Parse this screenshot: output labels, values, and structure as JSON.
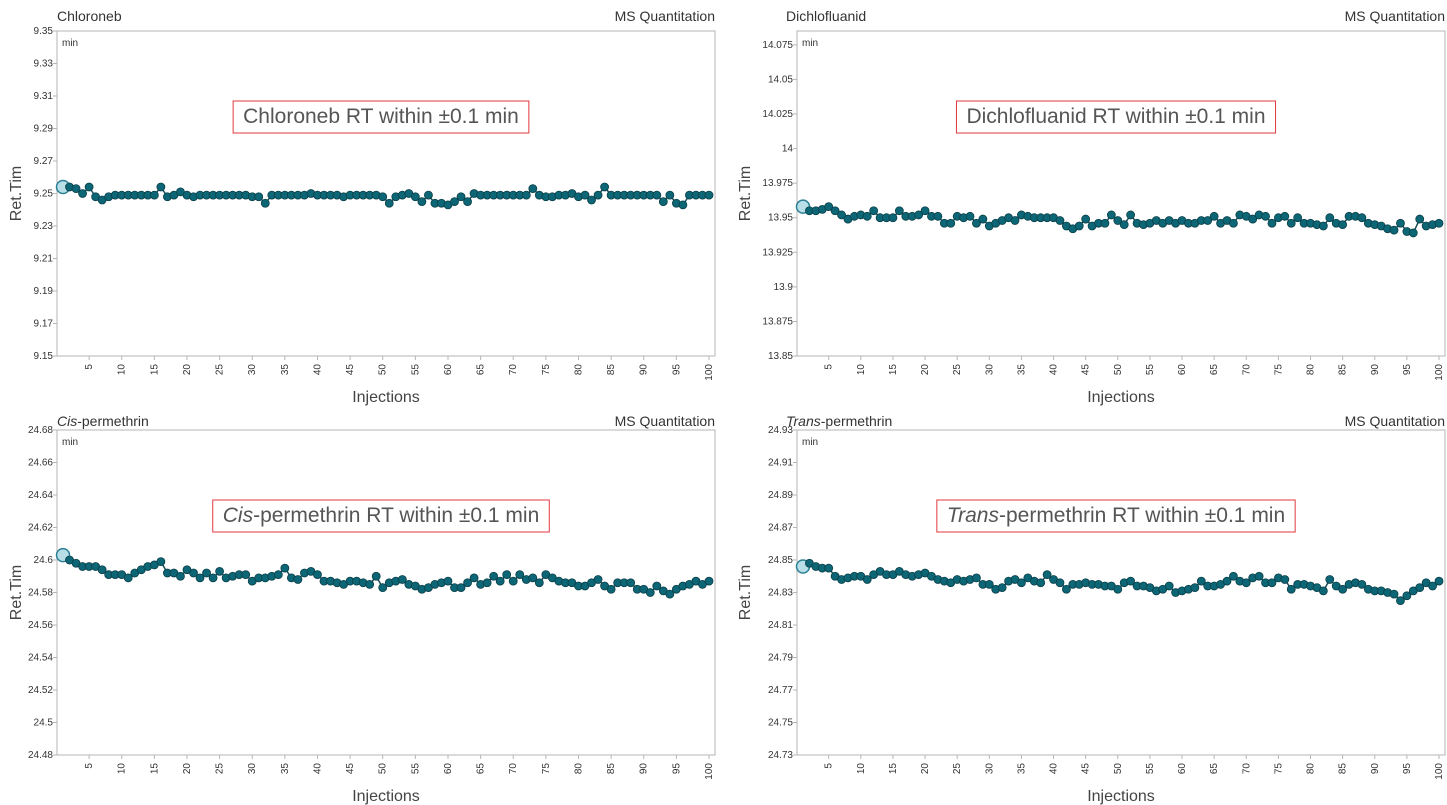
{
  "chart_data": [
    {
      "type": "scatter",
      "title": "Chloroneb",
      "title_italic_part": "",
      "title_rest": "Chloroneb",
      "subtitle": "MS Quantitation",
      "annotation_italic": "",
      "annotation_rest": "Chloroneb RT within ±0.1 min",
      "xlabel": "Injections",
      "ylabel": "Ret.Tim",
      "yunit": "min",
      "xlim": [
        0,
        100
      ],
      "ylim": [
        9.15,
        9.35
      ],
      "yticks": [
        "9.15",
        "9.17",
        "9.19",
        "9.21",
        "9.23",
        "9.25",
        "9.27",
        "9.29",
        "9.31",
        "9.33",
        "9.35"
      ],
      "xticks": [
        "5",
        "10",
        "15",
        "20",
        "25",
        "30",
        "35",
        "40",
        "45",
        "50",
        "55",
        "60",
        "65",
        "70",
        "75",
        "80",
        "85",
        "90",
        "95",
        "100"
      ],
      "highlight_x": 1,
      "base": 9.249,
      "y": [
        9.254,
        9.254,
        9.253,
        9.25,
        9.254,
        9.248,
        9.246,
        9.248,
        9.249,
        9.249,
        9.249,
        9.249,
        9.249,
        9.249,
        9.249,
        9.254,
        9.248,
        9.249,
        9.251,
        9.249,
        9.248,
        9.249,
        9.249,
        9.249,
        9.249,
        9.249,
        9.249,
        9.249,
        9.249,
        9.248,
        9.248,
        9.244,
        9.249,
        9.249,
        9.249,
        9.249,
        9.249,
        9.249,
        9.25,
        9.249,
        9.249,
        9.249,
        9.249,
        9.248,
        9.249,
        9.249,
        9.249,
        9.249,
        9.249,
        9.248,
        9.244,
        9.248,
        9.249,
        9.25,
        9.248,
        9.245,
        9.249,
        9.244,
        9.244,
        9.243,
        9.245,
        9.248,
        9.245,
        9.25,
        9.249,
        9.249,
        9.249,
        9.249,
        9.249,
        9.249,
        9.249,
        9.249,
        9.253,
        9.249,
        9.248,
        9.248,
        9.249,
        9.249,
        9.25,
        9.248,
        9.249,
        9.246,
        9.249,
        9.254,
        9.249,
        9.249,
        9.249,
        9.249,
        9.249,
        9.249,
        9.249,
        9.249,
        9.245,
        9.249,
        9.244,
        9.243,
        9.249,
        9.249,
        9.249,
        9.249
      ]
    },
    {
      "type": "scatter",
      "title": "Dichlofluanid",
      "title_italic_part": "",
      "title_rest": "Dichlofluanid",
      "subtitle": "MS Quantitation",
      "annotation_italic": "",
      "annotation_rest": "Dichlofluanid RT within ±0.1 min",
      "xlabel": "Injections",
      "ylabel": "Ret.Tim",
      "yunit": "min",
      "xlim": [
        0,
        100
      ],
      "ylim": [
        13.85,
        14.085
      ],
      "yticks": [
        "13.85",
        "13.875",
        "13.9",
        "13.925",
        "13.95",
        "13.975",
        "14",
        "14.025",
        "14.05",
        "14.075"
      ],
      "xticks": [
        "5",
        "10",
        "15",
        "20",
        "25",
        "30",
        "35",
        "40",
        "45",
        "50",
        "55",
        "60",
        "65",
        "70",
        "75",
        "80",
        "85",
        "90",
        "95",
        "100"
      ],
      "highlight_x": 1,
      "y": [
        13.958,
        13.955,
        13.955,
        13.956,
        13.958,
        13.955,
        13.952,
        13.949,
        13.951,
        13.952,
        13.951,
        13.955,
        13.95,
        13.95,
        13.95,
        13.955,
        13.951,
        13.951,
        13.952,
        13.955,
        13.951,
        13.951,
        13.946,
        13.946,
        13.951,
        13.95,
        13.951,
        13.946,
        13.949,
        13.944,
        13.946,
        13.948,
        13.95,
        13.948,
        13.952,
        13.951,
        13.95,
        13.95,
        13.95,
        13.95,
        13.948,
        13.944,
        13.942,
        13.944,
        13.949,
        13.944,
        13.946,
        13.946,
        13.952,
        13.948,
        13.945,
        13.952,
        13.946,
        13.945,
        13.946,
        13.948,
        13.946,
        13.948,
        13.946,
        13.948,
        13.946,
        13.946,
        13.948,
        13.948,
        13.951,
        13.946,
        13.948,
        13.946,
        13.952,
        13.951,
        13.949,
        13.952,
        13.951,
        13.946,
        13.95,
        13.951,
        13.946,
        13.95,
        13.946,
        13.946,
        13.945,
        13.944,
        13.95,
        13.946,
        13.945,
        13.951,
        13.951,
        13.95,
        13.946,
        13.945,
        13.944,
        13.942,
        13.941,
        13.946,
        13.94,
        13.939,
        13.949,
        13.944,
        13.945,
        13.946
      ]
    },
    {
      "type": "scatter",
      "title": "Cis-permethrin",
      "title_italic_part": "Cis",
      "title_rest": "-permethrin",
      "subtitle": "MS Quantitation",
      "annotation_italic": "Cis",
      "annotation_rest": "-permethrin RT within ±0.1 min",
      "xlabel": "Injections",
      "ylabel": "Ret.Tim",
      "yunit": "min",
      "xlim": [
        0,
        100
      ],
      "ylim": [
        24.48,
        24.68
      ],
      "yticks": [
        "24.48",
        "24.5",
        "24.52",
        "24.54",
        "24.56",
        "24.58",
        "24.6",
        "24.62",
        "24.64",
        "24.66",
        "24.68"
      ],
      "xticks": [
        "5",
        "10",
        "15",
        "20",
        "25",
        "30",
        "35",
        "40",
        "45",
        "50",
        "55",
        "60",
        "65",
        "70",
        "75",
        "80",
        "85",
        "90",
        "95",
        "100"
      ],
      "highlight_x": 1,
      "y": [
        24.603,
        24.6,
        24.598,
        24.596,
        24.596,
        24.596,
        24.594,
        24.591,
        24.591,
        24.591,
        24.589,
        24.592,
        24.594,
        24.596,
        24.597,
        24.599,
        24.592,
        24.592,
        24.59,
        24.594,
        24.592,
        24.589,
        24.592,
        24.589,
        24.593,
        24.589,
        24.59,
        24.591,
        24.591,
        24.587,
        24.589,
        24.589,
        24.59,
        24.591,
        24.595,
        24.589,
        24.588,
        24.592,
        24.593,
        24.591,
        24.587,
        24.587,
        24.586,
        24.585,
        24.587,
        24.587,
        24.586,
        24.585,
        24.59,
        24.583,
        24.586,
        24.587,
        24.588,
        24.585,
        24.584,
        24.582,
        24.583,
        24.585,
        24.586,
        24.587,
        24.583,
        24.583,
        24.586,
        24.589,
        24.585,
        24.586,
        24.59,
        24.587,
        24.591,
        24.587,
        24.591,
        24.588,
        24.589,
        24.586,
        24.591,
        24.589,
        24.587,
        24.586,
        24.586,
        24.584,
        24.584,
        24.586,
        24.588,
        24.584,
        24.582,
        24.586,
        24.586,
        24.586,
        24.582,
        24.582,
        24.58,
        24.584,
        24.581,
        24.579,
        24.582,
        24.584,
        24.585,
        24.587,
        24.585,
        24.587
      ]
    },
    {
      "type": "scatter",
      "title": "Trans-permethrin",
      "title_italic_part": "Trans",
      "title_rest": "-permethrin",
      "subtitle": "MS Quantitation",
      "annotation_italic": "Trans",
      "annotation_rest": "-permethrin RT within ±0.1 min",
      "xlabel": "Injections",
      "ylabel": "Ret.Tim",
      "yunit": "min",
      "xlim": [
        0,
        100
      ],
      "ylim": [
        24.73,
        24.93
      ],
      "yticks": [
        "24.73",
        "24.75",
        "24.77",
        "24.79",
        "24.81",
        "24.83",
        "24.85",
        "24.87",
        "24.89",
        "24.91",
        "24.93"
      ],
      "xticks": [
        "5",
        "10",
        "15",
        "20",
        "25",
        "30",
        "35",
        "40",
        "45",
        "50",
        "55",
        "60",
        "65",
        "70",
        "75",
        "80",
        "85",
        "90",
        "95",
        "100"
      ],
      "highlight_x": 1,
      "y": [
        24.846,
        24.848,
        24.846,
        24.845,
        24.845,
        24.84,
        24.838,
        24.839,
        24.84,
        24.84,
        24.838,
        24.841,
        24.843,
        24.841,
        24.841,
        24.843,
        24.841,
        24.84,
        24.841,
        24.842,
        24.84,
        24.838,
        24.837,
        24.836,
        24.838,
        24.837,
        24.838,
        24.839,
        24.835,
        24.835,
        24.832,
        24.833,
        24.837,
        24.838,
        24.836,
        24.839,
        24.837,
        24.836,
        24.841,
        24.838,
        24.836,
        24.832,
        24.835,
        24.835,
        24.836,
        24.835,
        24.835,
        24.834,
        24.834,
        24.832,
        24.836,
        24.837,
        24.834,
        24.834,
        24.833,
        24.831,
        24.832,
        24.834,
        24.83,
        24.831,
        24.832,
        24.833,
        24.837,
        24.834,
        24.834,
        24.835,
        24.837,
        24.84,
        24.837,
        24.836,
        24.839,
        24.84,
        24.836,
        24.836,
        24.839,
        24.838,
        24.832,
        24.835,
        24.835,
        24.834,
        24.833,
        24.831,
        24.838,
        24.834,
        24.832,
        24.835,
        24.836,
        24.835,
        24.832,
        24.831,
        24.831,
        24.83,
        24.829,
        24.825,
        24.828,
        24.831,
        24.833,
        24.836,
        24.834,
        24.837
      ]
    }
  ],
  "colors": {
    "marker_fill": "#0d6675",
    "marker_stroke": "#0a3f48",
    "line": "#1a4a55",
    "highlight_fill": "#b8dfe8",
    "highlight_stroke": "#2b7f94",
    "annotation_border": "#e0393e",
    "annotation_text": "#555555",
    "axis": "#b5b5b5",
    "label_text": "#555555"
  }
}
